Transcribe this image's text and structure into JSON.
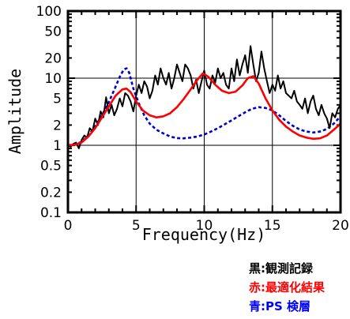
{
  "chart_data": {
    "type": "line",
    "title": "",
    "xlabel": "Frequency(Hz)",
    "ylabel": "Amplitude",
    "xscale": "linear",
    "yscale": "log",
    "xlim": [
      0,
      20
    ],
    "ylim": [
      0.1,
      100
    ],
    "grid": true,
    "x_ticks": [
      0,
      5,
      10,
      15,
      20
    ],
    "x_tick_labels": [
      "0",
      "5",
      "10",
      "15",
      "20"
    ],
    "y_ticks": [
      0.1,
      0.2,
      0.5,
      1,
      2,
      5,
      10,
      20,
      50,
      100
    ],
    "y_tick_labels": [
      "0.1",
      "0.2",
      "0.5",
      "1",
      "2",
      "5",
      "10",
      "20",
      "50",
      "100"
    ],
    "legend_placement": "below-right",
    "series": [
      {
        "name": "黒:観測記録",
        "color": "#000000",
        "style": "solid",
        "x": [
          0,
          0.2,
          0.4,
          0.6,
          0.8,
          1.0,
          1.2,
          1.4,
          1.6,
          1.8,
          2.0,
          2.2,
          2.4,
          2.6,
          2.8,
          3.0,
          3.2,
          3.4,
          3.6,
          3.8,
          4.0,
          4.2,
          4.4,
          4.6,
          4.8,
          5.0,
          5.2,
          5.4,
          5.6,
          5.8,
          6.0,
          6.2,
          6.4,
          6.6,
          6.8,
          7.0,
          7.2,
          7.4,
          7.6,
          7.8,
          8.0,
          8.2,
          8.4,
          8.6,
          8.8,
          9.0,
          9.2,
          9.4,
          9.6,
          9.8,
          10.0,
          10.2,
          10.4,
          10.6,
          10.8,
          11.0,
          11.2,
          11.4,
          11.6,
          11.8,
          12.0,
          12.2,
          12.4,
          12.6,
          12.8,
          13.0,
          13.2,
          13.4,
          13.6,
          13.8,
          14.0,
          14.2,
          14.4,
          14.6,
          14.8,
          15.0,
          15.2,
          15.4,
          15.6,
          15.8,
          16.0,
          16.2,
          16.4,
          16.6,
          16.8,
          17.0,
          17.2,
          17.4,
          17.6,
          17.8,
          18.0,
          18.2,
          18.4,
          18.6,
          18.8,
          19.0,
          19.2,
          19.4,
          19.6,
          19.8,
          20.0
        ],
        "y": [
          1.0,
          0.95,
          1.05,
          1.1,
          0.9,
          1.2,
          1.4,
          1.3,
          1.8,
          1.6,
          2.5,
          2.0,
          3.2,
          2.6,
          5.2,
          3.0,
          4.0,
          2.8,
          3.5,
          5.0,
          3.8,
          6.0,
          5.5,
          4.5,
          3.2,
          5.5,
          8.0,
          6.0,
          9.0,
          7.5,
          5.0,
          6.5,
          11.0,
          8.0,
          14.0,
          10.0,
          8.0,
          12.0,
          7.0,
          10.0,
          16.0,
          12.0,
          9.0,
          16.0,
          14.0,
          11.0,
          7.0,
          9.5,
          6.0,
          9.0,
          13.0,
          8.0,
          7.0,
          11.0,
          8.5,
          14.0,
          10.0,
          12.0,
          8.0,
          7.0,
          14.0,
          9.0,
          19.0,
          11.0,
          16.0,
          22.0,
          12.0,
          30.0,
          16.0,
          9.0,
          12.0,
          25.0,
          14.0,
          9.0,
          6.0,
          8.0,
          6.5,
          11.0,
          7.0,
          9.0,
          6.0,
          5.5,
          5.0,
          6.5,
          4.5,
          4.0,
          3.5,
          5.0,
          3.0,
          4.5,
          5.5,
          3.5,
          2.8,
          4.0,
          3.0,
          2.5,
          1.8,
          3.0,
          2.6,
          3.5,
          4.0
        ]
      },
      {
        "name": "赤:最適化結果",
        "color": "#ff0000",
        "style": "solid",
        "x": [
          0,
          0.5,
          1.0,
          1.5,
          2.0,
          2.5,
          3.0,
          3.5,
          4.0,
          4.3,
          4.6,
          5.0,
          5.5,
          6.0,
          6.5,
          7.0,
          7.5,
          8.0,
          8.5,
          9.0,
          9.5,
          9.9,
          10.3,
          10.8,
          11.3,
          11.8,
          12.3,
          12.8,
          13.2,
          13.6,
          14.0,
          14.5,
          15.0,
          15.5,
          16.0,
          16.5,
          17.0,
          17.5,
          18.0,
          18.5,
          19.0,
          19.5,
          20.0
        ],
        "y": [
          1.0,
          1.02,
          1.1,
          1.35,
          1.8,
          2.6,
          3.8,
          5.5,
          6.8,
          7.0,
          6.2,
          4.5,
          3.3,
          2.8,
          2.6,
          2.7,
          3.0,
          3.7,
          4.9,
          6.8,
          9.5,
          11.8,
          10.5,
          8.0,
          6.5,
          6.0,
          6.3,
          7.8,
          10.0,
          10.7,
          8.3,
          5.0,
          3.3,
          2.4,
          1.9,
          1.6,
          1.4,
          1.3,
          1.25,
          1.27,
          1.4,
          1.7,
          2.1
        ]
      },
      {
        "name": "青:PS 検層",
        "color": "#0000cc",
        "style": "dashed",
        "x": [
          0,
          0.5,
          1.0,
          1.5,
          2.0,
          2.5,
          3.0,
          3.5,
          3.8,
          4.1,
          4.3,
          4.5,
          4.8,
          5.2,
          5.6,
          6.0,
          6.5,
          7.0,
          7.5,
          8.0,
          8.5,
          9.0,
          9.5,
          10.0,
          10.5,
          11.0,
          11.5,
          12.0,
          12.5,
          13.0,
          13.5,
          14.0,
          14.5,
          15.0,
          15.5,
          16.0,
          16.5,
          17.0,
          17.5,
          18.0,
          18.5,
          19.0,
          19.5,
          20.0
        ],
        "y": [
          1.0,
          1.03,
          1.12,
          1.4,
          1.9,
          2.8,
          4.4,
          7.5,
          10.5,
          13.5,
          14.0,
          12.0,
          7.0,
          4.2,
          2.8,
          2.1,
          1.7,
          1.5,
          1.35,
          1.28,
          1.27,
          1.3,
          1.35,
          1.45,
          1.6,
          1.8,
          2.05,
          2.35,
          2.7,
          3.1,
          3.5,
          3.7,
          3.6,
          3.3,
          2.8,
          2.3,
          1.95,
          1.72,
          1.6,
          1.55,
          1.6,
          1.75,
          2.1,
          2.7
        ]
      }
    ]
  }
}
